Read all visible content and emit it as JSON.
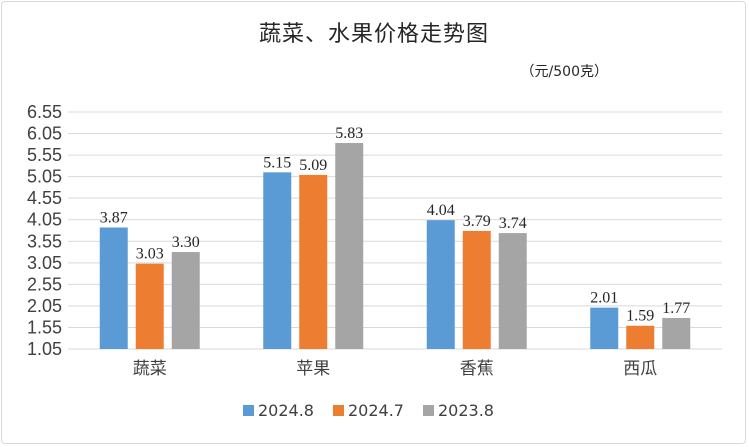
{
  "chart_data": {
    "type": "bar",
    "title": "蔬菜、水果价格走势图",
    "unit_note": "（元/500克）",
    "categories": [
      "蔬菜",
      "苹果",
      "香蕉",
      "西瓜"
    ],
    "series": [
      {
        "name": "2024.8",
        "values": [
          3.87,
          5.15,
          4.04,
          2.01
        ],
        "labels": [
          "3.87",
          "5.15",
          "4.04",
          "2.01"
        ],
        "color": "#5b9bd5"
      },
      {
        "name": "2024.7",
        "values": [
          3.03,
          5.09,
          3.79,
          1.59
        ],
        "labels": [
          "3.03",
          "5.09",
          "3.79",
          "1.59"
        ],
        "color": "#ed7d31"
      },
      {
        "name": "2023.8",
        "values": [
          3.3,
          5.83,
          3.74,
          1.77
        ],
        "labels": [
          "3.30",
          "5.83",
          "3.74",
          "1.77"
        ],
        "color": "#a5a5a5"
      }
    ],
    "ylim": [
      1.05,
      6.55
    ],
    "yticks": [
      "1.05",
      "1.55",
      "2.05",
      "2.55",
      "3.05",
      "3.55",
      "4.05",
      "4.55",
      "5.05",
      "5.55",
      "6.05",
      "6.55"
    ],
    "xlabel": "",
    "ylabel": "",
    "grid": true,
    "legend_position": "bottom"
  }
}
